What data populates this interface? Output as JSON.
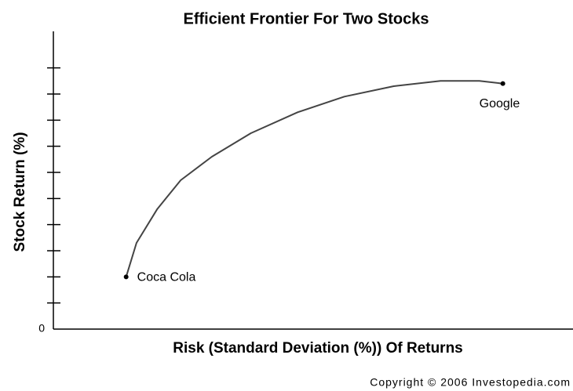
{
  "chart_data": {
    "type": "line",
    "title": "Efficient Frontier For Two Stocks",
    "xlabel": "Risk (Standard Deviation (%)) Of Returns",
    "ylabel": "Stock Return (%)",
    "source": "Copyright © 2006 Investopedia.com",
    "color": "#444444",
    "x": [
      2.8,
      3.2,
      4.0,
      4.9,
      6.1,
      7.6,
      9.4,
      11.2,
      13.1,
      14.9,
      16.4,
      17.3
    ],
    "values": [
      2.0,
      3.3,
      4.6,
      5.7,
      6.6,
      7.5,
      8.3,
      8.9,
      9.3,
      9.5,
      9.5,
      9.4
    ],
    "points": [
      {
        "name": "Coca Cola",
        "x": 2.8,
        "y": 2.0
      },
      {
        "name": "Google",
        "x": 17.3,
        "y": 9.4
      }
    ],
    "xlim": [
      0,
      20
    ],
    "ylim": [
      0,
      11.4
    ],
    "yticks": [
      0
    ],
    "yminorticks": [
      1,
      2,
      3,
      4,
      5,
      6,
      7,
      8,
      9,
      10
    ]
  }
}
